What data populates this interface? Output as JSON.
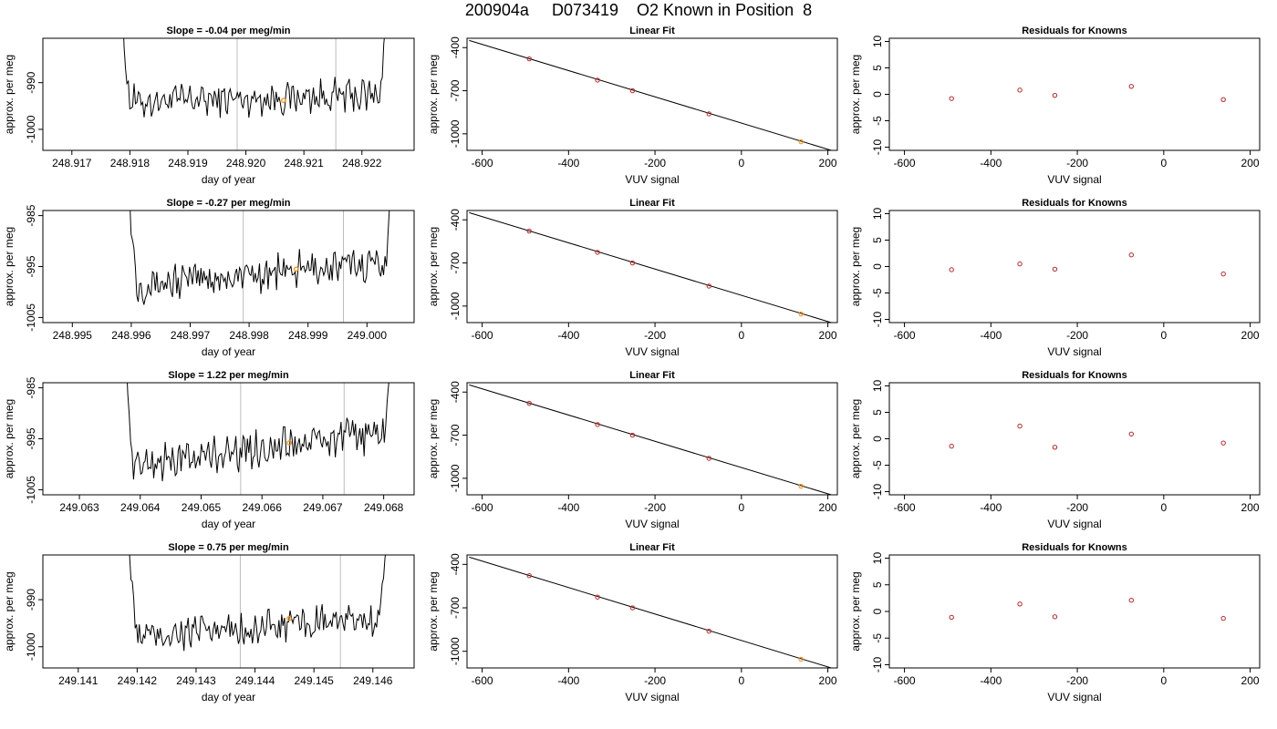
{
  "page_title": "200904a     D073419    O2 Known in Position  8",
  "colors": {
    "trace": "#000000",
    "marker_line": "#bdbdbd",
    "highlight_point": "#ff8c00",
    "residual_point": "#cc2222",
    "fit_point": "#cc2222"
  },
  "chart_data": [
    {
      "type": "line",
      "panel": "time-series-row-1",
      "title": "Slope =  -0.04  per meg/min",
      "xlabel": "day of year",
      "ylabel": "approx. per meg",
      "xlim": [
        248.9165,
        248.9229
      ],
      "ylim": [
        -1004.5,
        -980.5
      ],
      "x_ticks": [
        248.917,
        248.918,
        248.919,
        248.92,
        248.921,
        248.922
      ],
      "x_tick_decimals": 3,
      "y_ticks": [
        -1000,
        -990
      ],
      "y_tick_labels": [
        "-1000",
        "-990"
      ],
      "t_start": 248.9178,
      "t_end": 248.9225,
      "baseline": -994.2,
      "drift": 1.6,
      "markers": [
        248.91985,
        248.92155
      ],
      "highlight": {
        "x": 248.92065,
        "y": -993.8
      }
    },
    {
      "type": "line",
      "panel": "time-series-row-2",
      "title": "Slope =  -0.27  per meg/min",
      "xlabel": "day of year",
      "ylabel": "approx. per meg",
      "xlim": [
        248.9945,
        249.0008
      ],
      "ylim": [
        -1006,
        -984
      ],
      "x_ticks": [
        248.995,
        248.996,
        248.997,
        248.998,
        248.999,
        249.0
      ],
      "x_tick_decimals": 3,
      "y_ticks": [
        -1005,
        -995,
        -985
      ],
      "y_tick_labels": [
        "-1005",
        "-995",
        "-985"
      ],
      "t_start": 248.9959,
      "t_end": 249.0005,
      "baseline": -998.8,
      "drift": 4.8,
      "markers": [
        248.9979,
        248.9996
      ],
      "highlight": {
        "x": 248.9988,
        "y": -995.5
      }
    },
    {
      "type": "line",
      "panel": "time-series-row-3",
      "title": "Slope =  1.22  per meg/min",
      "xlabel": "day of year",
      "ylabel": "approx. per meg",
      "xlim": [
        249.0624,
        249.0685
      ],
      "ylim": [
        -1006,
        -984
      ],
      "x_ticks": [
        249.063,
        249.064,
        249.065,
        249.066,
        249.067,
        249.068
      ],
      "x_tick_decimals": 3,
      "y_ticks": [
        -1005,
        -995,
        -985
      ],
      "y_tick_labels": [
        "-1005",
        "-995",
        "-985"
      ],
      "t_start": 249.0637,
      "t_end": 249.0682,
      "baseline": -1000.5,
      "drift": 7.0,
      "markers": [
        249.06565,
        249.06735
      ],
      "highlight": {
        "x": 249.06645,
        "y": -995.8
      }
    },
    {
      "type": "line",
      "panel": "time-series-row-4",
      "title": "Slope =  0.75  per meg/min",
      "xlabel": "day of year",
      "ylabel": "approx. per meg",
      "xlim": [
        249.1404,
        249.1467
      ],
      "ylim": [
        -1004.5,
        -980.5
      ],
      "x_ticks": [
        249.141,
        249.142,
        249.143,
        249.144,
        249.145,
        249.146
      ],
      "x_tick_decimals": 3,
      "y_ticks": [
        -1000,
        -990
      ],
      "y_tick_labels": [
        "-1000",
        "-990"
      ],
      "t_start": 249.1418,
      "t_end": 249.1463,
      "baseline": -998.0,
      "drift": 4.0,
      "markers": [
        249.14375,
        249.14545
      ],
      "highlight": {
        "x": 249.14458,
        "y": -994.0
      }
    },
    {
      "type": "scatter",
      "panel": "linear-fit-row-1",
      "title": "Linear Fit",
      "xlabel": "VUV signal",
      "ylabel": "approx. per meg",
      "xlim": [
        -635,
        222
      ],
      "ylim": [
        -1115,
        -335
      ],
      "x_ticks": [
        -600,
        -400,
        -200,
        0,
        200
      ],
      "y_ticks": [
        -1000,
        -700,
        -400
      ],
      "points": [
        [
          -491,
          -478
        ],
        [
          -333,
          -626
        ],
        [
          -252,
          -700
        ],
        [
          -75,
          -861
        ],
        [
          138,
          -1055
        ]
      ],
      "highlight_index": 4,
      "fit_line": {
        "x": [
          -630,
          220
        ],
        "y": [
          -350,
          -1126
        ]
      }
    },
    {
      "type": "scatter",
      "panel": "linear-fit-row-2",
      "title": "Linear Fit",
      "xlabel": "VUV signal",
      "ylabel": "approx. per meg",
      "xlim": [
        -635,
        222
      ],
      "ylim": [
        -1115,
        -335
      ],
      "x_ticks": [
        -600,
        -400,
        -200,
        0,
        200
      ],
      "y_ticks": [
        -1000,
        -700,
        -400
      ],
      "points": [
        [
          -491,
          -478
        ],
        [
          -333,
          -626
        ],
        [
          -252,
          -700
        ],
        [
          -75,
          -861
        ],
        [
          138,
          -1055
        ]
      ],
      "highlight_index": 4,
      "fit_line": {
        "x": [
          -630,
          220
        ],
        "y": [
          -350,
          -1126
        ]
      }
    },
    {
      "type": "scatter",
      "panel": "linear-fit-row-3",
      "title": "Linear Fit",
      "xlabel": "VUV signal",
      "ylabel": "approx. per meg",
      "xlim": [
        -635,
        222
      ],
      "ylim": [
        -1115,
        -335
      ],
      "x_ticks": [
        -600,
        -400,
        -200,
        0,
        200
      ],
      "y_ticks": [
        -1000,
        -700,
        -400
      ],
      "points": [
        [
          -491,
          -478
        ],
        [
          -333,
          -626
        ],
        [
          -252,
          -700
        ],
        [
          -75,
          -861
        ],
        [
          138,
          -1055
        ]
      ],
      "highlight_index": 4,
      "fit_line": {
        "x": [
          -630,
          220
        ],
        "y": [
          -350,
          -1126
        ]
      }
    },
    {
      "type": "scatter",
      "panel": "linear-fit-row-4",
      "title": "Linear Fit",
      "xlabel": "VUV signal",
      "ylabel": "approx. per meg",
      "xlim": [
        -635,
        222
      ],
      "ylim": [
        -1115,
        -335
      ],
      "x_ticks": [
        -600,
        -400,
        -200,
        0,
        200
      ],
      "y_ticks": [
        -1000,
        -700,
        -400
      ],
      "points": [
        [
          -491,
          -478
        ],
        [
          -333,
          -626
        ],
        [
          -252,
          -700
        ],
        [
          -75,
          -861
        ],
        [
          138,
          -1055
        ]
      ],
      "highlight_index": 4,
      "fit_line": {
        "x": [
          -630,
          220
        ],
        "y": [
          -350,
          -1126
        ]
      }
    },
    {
      "type": "scatter",
      "panel": "residuals-row-1",
      "title": "Residuals for Knowns",
      "xlabel": "VUV signal",
      "ylabel": "approx. per meg",
      "xlim": [
        -635,
        222
      ],
      "ylim": [
        -10.6,
        10.6
      ],
      "x_ticks": [
        -600,
        -400,
        -200,
        0,
        200
      ],
      "y_ticks": [
        -10,
        -5,
        0,
        5,
        10
      ],
      "points": [
        [
          -491,
          -0.8
        ],
        [
          -333,
          0.8
        ],
        [
          -252,
          -0.2
        ],
        [
          -75,
          1.5
        ],
        [
          138,
          -1.0
        ]
      ]
    },
    {
      "type": "scatter",
      "panel": "residuals-row-2",
      "title": "Residuals for Knowns",
      "xlabel": "VUV signal",
      "ylabel": "approx. per meg",
      "xlim": [
        -635,
        222
      ],
      "ylim": [
        -10.6,
        10.6
      ],
      "x_ticks": [
        -600,
        -400,
        -200,
        0,
        200
      ],
      "y_ticks": [
        -10,
        -5,
        0,
        5,
        10
      ],
      "points": [
        [
          -491,
          -0.6
        ],
        [
          -333,
          0.5
        ],
        [
          -252,
          -0.5
        ],
        [
          -75,
          2.2
        ],
        [
          138,
          -1.4
        ]
      ]
    },
    {
      "type": "scatter",
      "panel": "residuals-row-3",
      "title": "Residuals for Knowns",
      "xlabel": "VUV signal",
      "ylabel": "approx. per meg",
      "xlim": [
        -635,
        222
      ],
      "ylim": [
        -10.6,
        10.6
      ],
      "x_ticks": [
        -600,
        -400,
        -200,
        0,
        200
      ],
      "y_ticks": [
        -10,
        -5,
        0,
        5,
        10
      ],
      "points": [
        [
          -491,
          -1.4
        ],
        [
          -333,
          2.4
        ],
        [
          -252,
          -1.6
        ],
        [
          -75,
          0.9
        ],
        [
          138,
          -0.8
        ]
      ]
    },
    {
      "type": "scatter",
      "panel": "residuals-row-4",
      "title": "Residuals for Knowns",
      "xlabel": "VUV signal",
      "ylabel": "approx. per meg",
      "xlim": [
        -635,
        222
      ],
      "ylim": [
        -10.6,
        10.6
      ],
      "x_ticks": [
        -600,
        -400,
        -200,
        0,
        200
      ],
      "y_ticks": [
        -10,
        -5,
        0,
        5,
        10
      ],
      "points": [
        [
          -491,
          -1.1
        ],
        [
          -333,
          1.4
        ],
        [
          -252,
          -1.0
        ],
        [
          -75,
          2.1
        ],
        [
          138,
          -1.3
        ]
      ]
    }
  ]
}
